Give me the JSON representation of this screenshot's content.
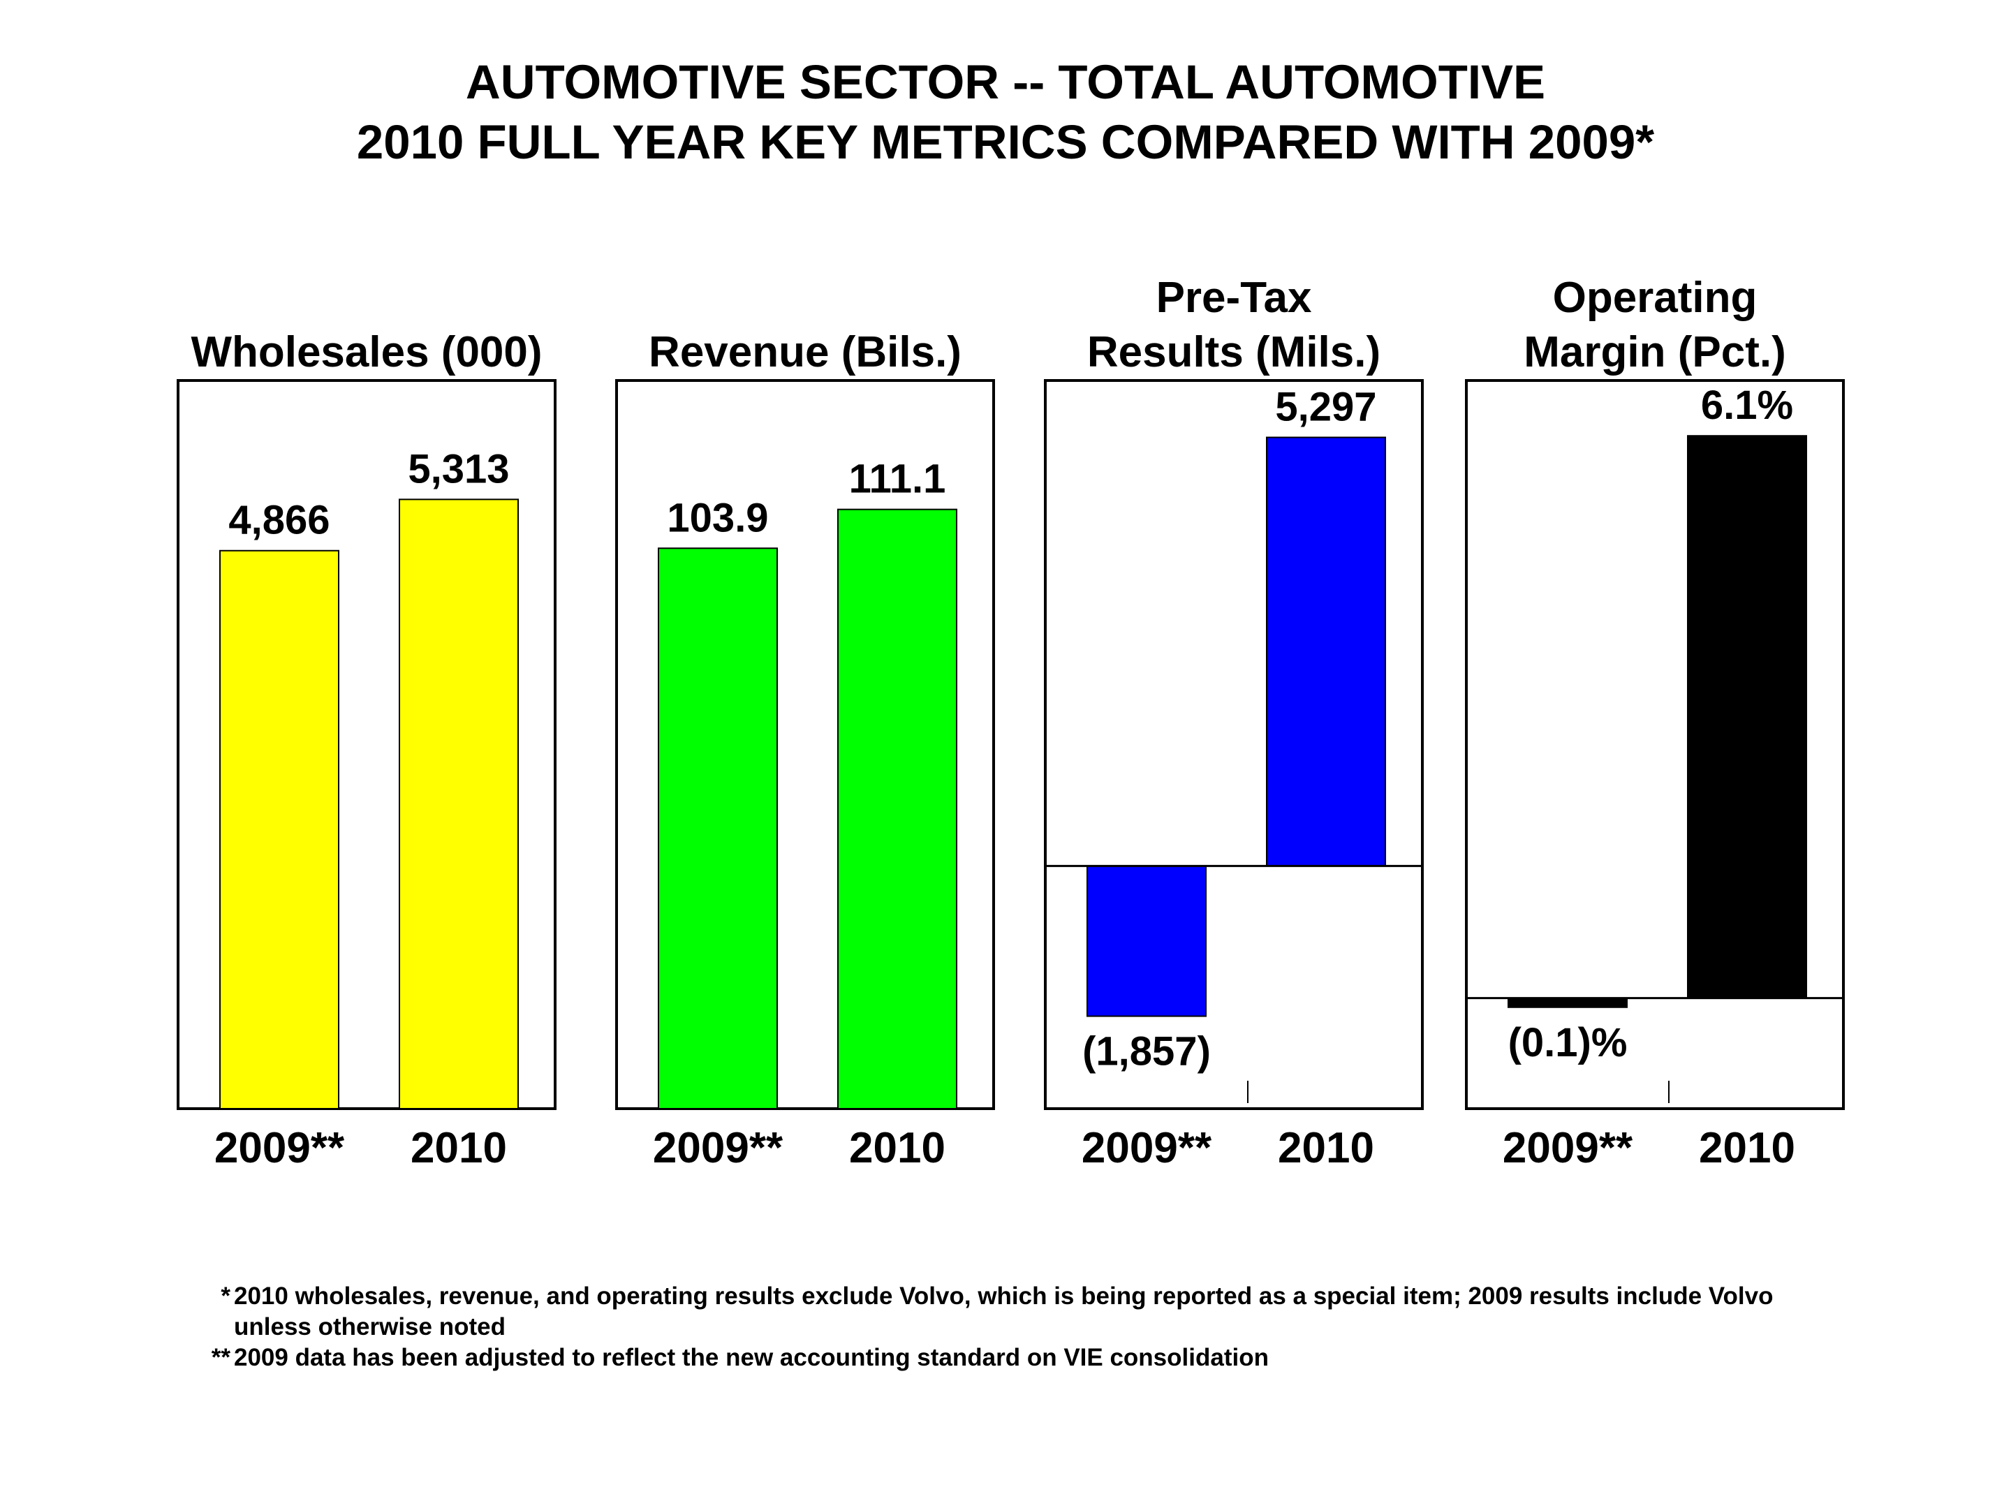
{
  "title": {
    "line1": "AUTOMOTIVE SECTOR -- TOTAL AUTOMOTIVE",
    "line2": "2010 FULL YEAR KEY METRICS COMPARED WITH 2009*"
  },
  "chart_data": [
    {
      "type": "bar",
      "title": [
        "Wholesales (000)"
      ],
      "categories": [
        "2009**",
        "2010"
      ],
      "values": [
        4866,
        5313
      ],
      "labels": [
        "4,866",
        "5,313"
      ],
      "color": "#ffff00",
      "ylim": [
        0,
        6350
      ]
    },
    {
      "type": "bar",
      "title": [
        "Revenue (Bils.)"
      ],
      "categories": [
        "2009**",
        "2010"
      ],
      "values": [
        103.9,
        111.1
      ],
      "labels": [
        "103.9",
        "111.1"
      ],
      "color": "#00ff00",
      "ylim": [
        0,
        135
      ]
    },
    {
      "type": "bar",
      "title": [
        "Pre-Tax",
        "Results (Mils.)"
      ],
      "categories": [
        "2009**",
        "2010"
      ],
      "values": [
        -1857,
        5297
      ],
      "labels": [
        "(1,857)",
        "5,297"
      ],
      "color": "#0000ff",
      "ylim": [
        -3000,
        6000
      ]
    },
    {
      "type": "bar",
      "title": [
        "Operating",
        "Margin (Pct.)"
      ],
      "categories": [
        "2009**",
        "2010"
      ],
      "values": [
        -0.1,
        6.1
      ],
      "labels": [
        "(0.1)%",
        "6.1%"
      ],
      "color": "#000000",
      "ylim": [
        -1.2,
        6.7
      ]
    }
  ],
  "footnotes": [
    {
      "mark": "*",
      "lines": [
        "2010 wholesales, revenue, and operating results exclude Volvo, which is being reported as a special item; 2009 results include Volvo",
        "unless otherwise noted"
      ]
    },
    {
      "mark": "**",
      "lines": [
        "2009 data has been adjusted to reflect the new accounting standard on VIE consolidation"
      ]
    }
  ]
}
